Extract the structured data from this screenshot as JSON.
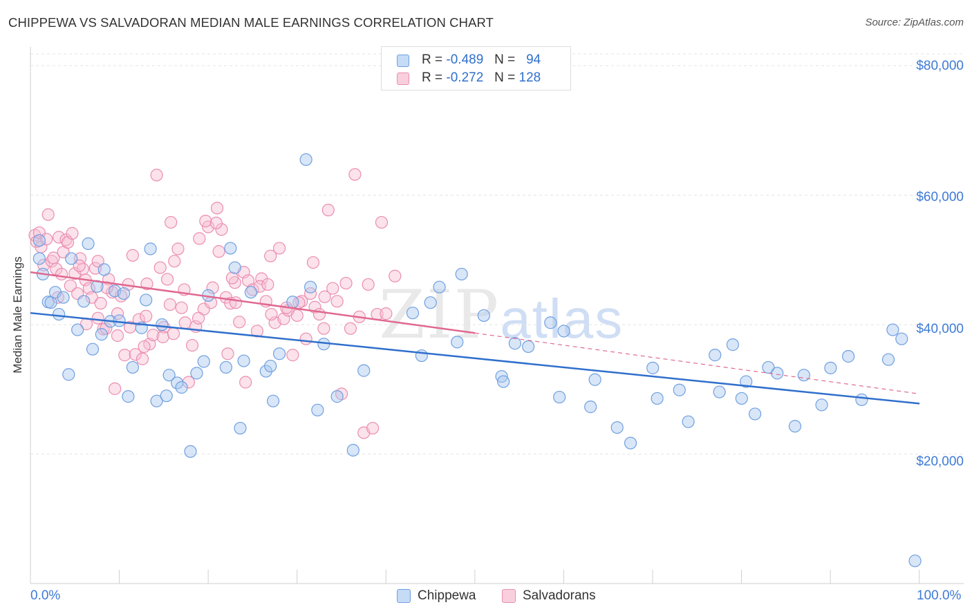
{
  "title": "CHIPPEWA VS SALVADORAN MEDIAN MALE EARNINGS CORRELATION CHART",
  "source": "Source: ZipAtlas.com",
  "watermark": {
    "zip": "ZIP",
    "atlas": "atlas"
  },
  "legend": {
    "rows": [
      {
        "r_label": "R =",
        "r_value": "-0.489",
        "n_label": "N =",
        "n_value": "94",
        "color": "#7aa7e6"
      },
      {
        "r_label": "R =",
        "r_value": "-0.272",
        "n_label": "N =",
        "n_value": "128",
        "color": "#f08cb0"
      }
    ]
  },
  "bottom_legend": [
    "Chippewa",
    "Salvadorans"
  ],
  "colors": {
    "chippewa_fill": "#a9c7f0",
    "chippewa_stroke": "#6f9fe0",
    "chippewa_line": "#2f6fcc",
    "salvadoran_fill": "#f7bfd2",
    "salvadoran_stroke": "#eb8db0",
    "salvadoran_line": "#e0688f",
    "grid": "#e3e3e3",
    "axis_text": "#3d7ad6"
  },
  "chart_data": {
    "type": "scatter",
    "title": "CHIPPEWA VS SALVADORAN MEDIAN MALE EARNINGS CORRELATION CHART",
    "xlabel": "",
    "ylabel": "Median Male Earnings",
    "x_tick_labels": [
      "0.0%",
      "100.0%"
    ],
    "y_tick_labels": [
      "$20,000",
      "$40,000",
      "$60,000",
      "$80,000"
    ],
    "y_ticks": [
      20000,
      40000,
      60000,
      80000
    ],
    "xlim": [
      0,
      100
    ],
    "ylim": [
      0,
      83000
    ],
    "grid": true,
    "series": [
      {
        "name": "Chippewa",
        "r": -0.489,
        "n": 94,
        "trend": {
          "x": [
            0,
            100
          ],
          "y": [
            41800,
            27800
          ]
        },
        "points": [
          [
            1,
            53000
          ],
          [
            1,
            50200
          ],
          [
            1.4,
            47800
          ],
          [
            2,
            43500
          ],
          [
            2.3,
            43400
          ],
          [
            2.8,
            45000
          ],
          [
            3.2,
            41600
          ],
          [
            3.7,
            44200
          ],
          [
            4.3,
            32300
          ],
          [
            4.6,
            50200
          ],
          [
            5.3,
            39200
          ],
          [
            6,
            43600
          ],
          [
            6.5,
            52500
          ],
          [
            7,
            36200
          ],
          [
            7.5,
            45900
          ],
          [
            8,
            38500
          ],
          [
            8.3,
            48500
          ],
          [
            9,
            40500
          ],
          [
            9.5,
            45200
          ],
          [
            10,
            40600
          ],
          [
            10.5,
            44800
          ],
          [
            11,
            28900
          ],
          [
            11.5,
            33400
          ],
          [
            12.5,
            39500
          ],
          [
            13,
            43800
          ],
          [
            13.5,
            51700
          ],
          [
            14.2,
            28200
          ],
          [
            14.8,
            40000
          ],
          [
            15.3,
            29000
          ],
          [
            15.6,
            32200
          ],
          [
            16.5,
            31000
          ],
          [
            17,
            30300
          ],
          [
            18,
            20400
          ],
          [
            18.7,
            32500
          ],
          [
            19.5,
            34300
          ],
          [
            20,
            44500
          ],
          [
            22,
            33400
          ],
          [
            22.5,
            51800
          ],
          [
            23,
            48800
          ],
          [
            23.6,
            24000
          ],
          [
            24,
            34400
          ],
          [
            26.5,
            32800
          ],
          [
            27,
            33600
          ],
          [
            27.3,
            28200
          ],
          [
            28,
            35500
          ],
          [
            29.5,
            43500
          ],
          [
            31,
            65500
          ],
          [
            31.5,
            45800
          ],
          [
            32.3,
            26800
          ],
          [
            33,
            37000
          ],
          [
            34.5,
            28900
          ],
          [
            36.3,
            20600
          ],
          [
            37.5,
            32900
          ],
          [
            43,
            41800
          ],
          [
            44,
            35200
          ],
          [
            45,
            43400
          ],
          [
            46,
            45800
          ],
          [
            48,
            37300
          ],
          [
            48.5,
            47800
          ],
          [
            51,
            41400
          ],
          [
            53,
            32000
          ],
          [
            53.2,
            31200
          ],
          [
            54.5,
            37100
          ],
          [
            56,
            36600
          ],
          [
            58.5,
            40300
          ],
          [
            59.5,
            28800
          ],
          [
            63,
            27300
          ],
          [
            63.5,
            31500
          ],
          [
            66,
            24100
          ],
          [
            67.5,
            21700
          ],
          [
            70,
            33300
          ],
          [
            70.5,
            28600
          ],
          [
            73,
            29900
          ],
          [
            74,
            25000
          ],
          [
            77,
            35300
          ],
          [
            77.5,
            29600
          ],
          [
            79,
            36900
          ],
          [
            80.5,
            31200
          ],
          [
            80,
            28600
          ],
          [
            81.5,
            26200
          ],
          [
            83,
            33400
          ],
          [
            84,
            32500
          ],
          [
            86,
            24300
          ],
          [
            87,
            32200
          ],
          [
            89,
            27600
          ],
          [
            90,
            33300
          ],
          [
            92,
            35100
          ],
          [
            93.5,
            28400
          ],
          [
            96.5,
            34600
          ],
          [
            97,
            39200
          ],
          [
            98,
            37800
          ],
          [
            99.5,
            3500
          ],
          [
            24.8,
            45000
          ],
          [
            60,
            39000
          ]
        ]
      },
      {
        "name": "Salvadorans",
        "r": -0.272,
        "n": 128,
        "trend": {
          "x": [
            0,
            50
          ],
          "y": [
            48100,
            38700
          ]
        },
        "trend_extension": {
          "x": [
            50,
            100
          ],
          "y": [
            38700,
            29300
          ]
        },
        "points": [
          [
            0.5,
            53800
          ],
          [
            0.7,
            52800
          ],
          [
            1,
            54200
          ],
          [
            1.2,
            52000
          ],
          [
            1.5,
            49200
          ],
          [
            1.8,
            53200
          ],
          [
            2,
            57000
          ],
          [
            2.4,
            49800
          ],
          [
            2.6,
            50300
          ],
          [
            2.9,
            48600
          ],
          [
            3.2,
            53500
          ],
          [
            3.5,
            47800
          ],
          [
            3.7,
            51200
          ],
          [
            4,
            53100
          ],
          [
            4.2,
            52700
          ],
          [
            4.5,
            46000
          ],
          [
            4.7,
            54100
          ],
          [
            5,
            47900
          ],
          [
            5.3,
            44800
          ],
          [
            5.6,
            50200
          ],
          [
            5.9,
            48600
          ],
          [
            6.2,
            46900
          ],
          [
            6.6,
            45600
          ],
          [
            6.9,
            44200
          ],
          [
            7.3,
            48700
          ],
          [
            7.6,
            49800
          ],
          [
            7.9,
            43300
          ],
          [
            8.2,
            39300
          ],
          [
            8.5,
            39400
          ],
          [
            8.8,
            47000
          ],
          [
            9.2,
            45000
          ],
          [
            9.5,
            30100
          ],
          [
            9.8,
            41700
          ],
          [
            10.2,
            44400
          ],
          [
            10.6,
            35300
          ],
          [
            11,
            46200
          ],
          [
            11.5,
            50700
          ],
          [
            11.8,
            35400
          ],
          [
            12.2,
            40800
          ],
          [
            12.6,
            34700
          ],
          [
            13,
            41300
          ],
          [
            13.4,
            37000
          ],
          [
            13.8,
            38400
          ],
          [
            14.2,
            63100
          ],
          [
            14.6,
            48800
          ],
          [
            15,
            39600
          ],
          [
            15.4,
            47000
          ],
          [
            15.8,
            55800
          ],
          [
            16.2,
            49800
          ],
          [
            16.6,
            51700
          ],
          [
            17,
            42600
          ],
          [
            17.4,
            40300
          ],
          [
            17.8,
            31100
          ],
          [
            18.2,
            36800
          ],
          [
            18.6,
            39700
          ],
          [
            19,
            53300
          ],
          [
            19.5,
            42400
          ],
          [
            20,
            55100
          ],
          [
            20.5,
            45700
          ],
          [
            21,
            58000
          ],
          [
            21.5,
            54700
          ],
          [
            22,
            44200
          ],
          [
            22.5,
            43300
          ],
          [
            23,
            46500
          ],
          [
            23.5,
            40400
          ],
          [
            24,
            48100
          ],
          [
            24.5,
            46800
          ],
          [
            25,
            45400
          ],
          [
            25.5,
            39000
          ],
          [
            26,
            47100
          ],
          [
            26.5,
            43600
          ],
          [
            27,
            50600
          ],
          [
            27.5,
            40300
          ],
          [
            28,
            51800
          ],
          [
            28.5,
            40900
          ],
          [
            29,
            42200
          ],
          [
            29.5,
            35300
          ],
          [
            30,
            41400
          ],
          [
            30.5,
            43600
          ],
          [
            31,
            37800
          ],
          [
            31.5,
            44800
          ],
          [
            32,
            42700
          ],
          [
            32.5,
            41600
          ],
          [
            33,
            39400
          ],
          [
            33.5,
            57700
          ],
          [
            34,
            45600
          ],
          [
            34.5,
            43600
          ],
          [
            35,
            29300
          ],
          [
            35.5,
            46400
          ],
          [
            36,
            39400
          ],
          [
            36.5,
            63200
          ],
          [
            37,
            41200
          ],
          [
            37.5,
            23300
          ],
          [
            38,
            46200
          ],
          [
            38.5,
            24000
          ],
          [
            39,
            41600
          ],
          [
            39.5,
            55800
          ],
          [
            40,
            41700
          ],
          [
            22.2,
            35500
          ],
          [
            24.2,
            31100
          ],
          [
            41,
            47500
          ],
          [
            12.8,
            36600
          ],
          [
            6.3,
            40100
          ],
          [
            14.9,
            38100
          ],
          [
            19.7,
            56000
          ],
          [
            20.9,
            55700
          ],
          [
            21.2,
            51300
          ],
          [
            23.1,
            43400
          ],
          [
            25.8,
            45900
          ],
          [
            27.1,
            41600
          ],
          [
            28.8,
            42600
          ],
          [
            30.2,
            43400
          ],
          [
            31.8,
            49600
          ],
          [
            33.1,
            44300
          ],
          [
            26.7,
            46200
          ],
          [
            7.6,
            41000
          ],
          [
            9.8,
            38300
          ],
          [
            11.2,
            39600
          ],
          [
            13.1,
            46300
          ],
          [
            15.7,
            43100
          ],
          [
            17.3,
            45400
          ],
          [
            18.9,
            41000
          ],
          [
            20.3,
            43400
          ],
          [
            22.7,
            47200
          ],
          [
            16.1,
            38600
          ],
          [
            3.1,
            44200
          ],
          [
            5.5,
            49100
          ],
          [
            8.6,
            45700
          ]
        ]
      }
    ]
  }
}
